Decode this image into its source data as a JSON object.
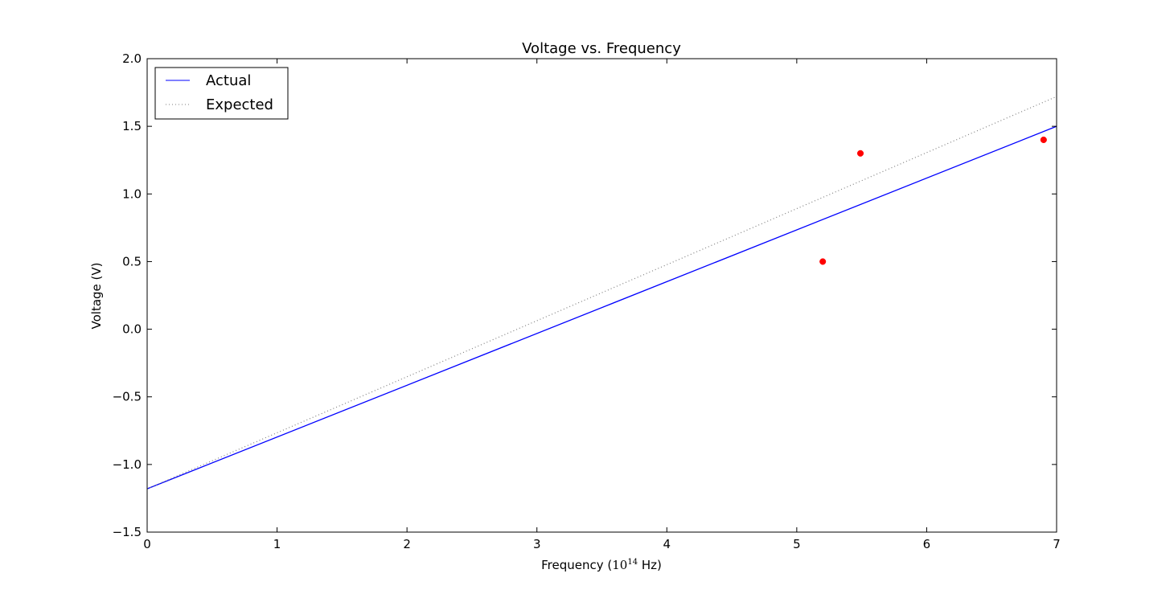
{
  "chart_data": {
    "type": "line",
    "title": "Voltage vs. Frequency",
    "xlabel": {
      "prefix": "Frequency (",
      "base": "10",
      "exponent": "14",
      "suffix": " Hz)"
    },
    "ylabel": "Voltage (V)",
    "xlim": [
      0,
      7
    ],
    "ylim": [
      -1.5,
      2.0
    ],
    "xticks": [
      0,
      1,
      2,
      3,
      4,
      5,
      6,
      7
    ],
    "xtick_labels": [
      "0",
      "1",
      "2",
      "3",
      "4",
      "5",
      "6",
      "7"
    ],
    "yticks": [
      -1.5,
      -1.0,
      -0.5,
      0.0,
      0.5,
      1.0,
      1.5,
      2.0
    ],
    "ytick_labels": [
      "−1.5",
      "−1.0",
      "−0.5",
      "0.0",
      "0.5",
      "1.0",
      "1.5",
      "2.0"
    ],
    "grid": false,
    "legend_position": "upper-left",
    "series": [
      {
        "name": "Actual",
        "kind": "line",
        "style": "solid",
        "color": "#0000ff",
        "x": [
          0,
          7
        ],
        "y": [
          -1.18,
          1.5
        ]
      },
      {
        "name": "Expected",
        "kind": "line",
        "style": "dotted",
        "color": "#7f7f7f",
        "x": [
          0,
          7
        ],
        "y": [
          -1.18,
          1.72
        ]
      },
      {
        "kind": "scatter",
        "color": "#ff0000",
        "x": [
          5.2,
          5.49,
          6.9
        ],
        "y": [
          0.5,
          1.3,
          1.4
        ]
      }
    ]
  }
}
